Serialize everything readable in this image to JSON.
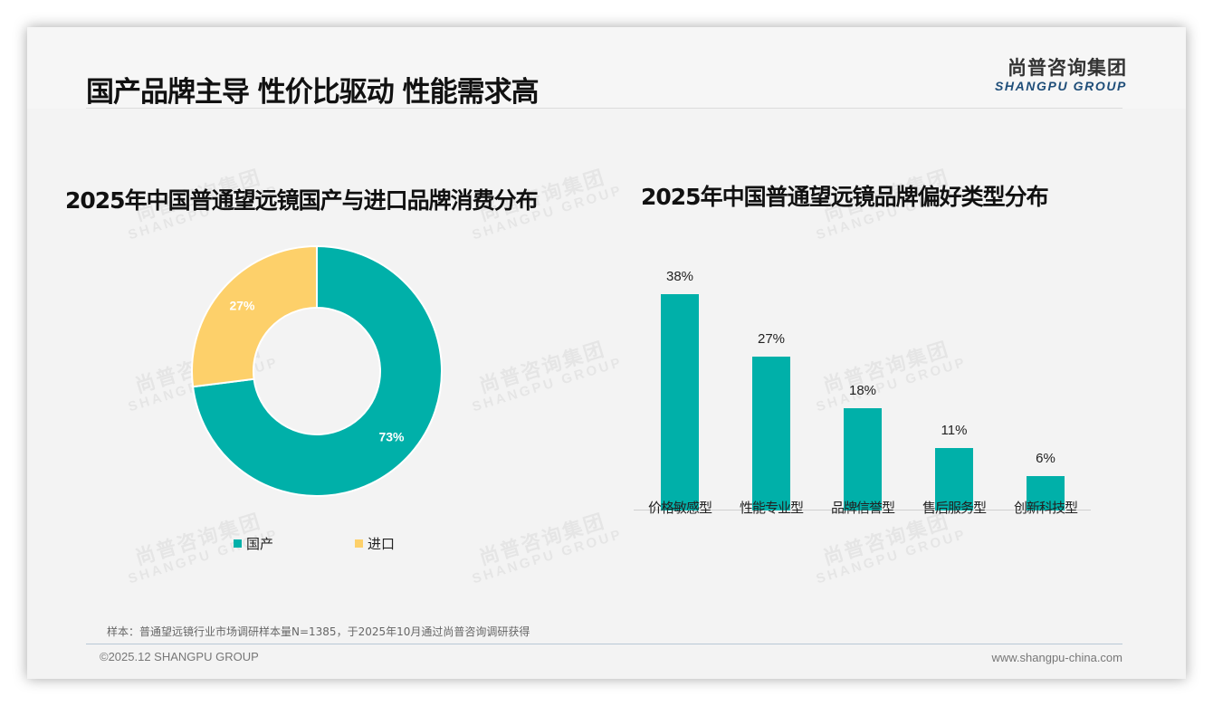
{
  "header": {
    "title": "国产品牌主导 性价比驱动 性能需求高",
    "logo_cn": "尚普咨询集团",
    "logo_en": "SHANGPU GROUP"
  },
  "colors": {
    "teal": "#00b0a9",
    "yellow": "#fdd06a",
    "background": "#f3f3f3",
    "logo_blue": "#1f4e79"
  },
  "watermark": {
    "cn": "尚普咨询集团",
    "en": "SHANGPU GROUP"
  },
  "chart_data": [
    {
      "type": "pie",
      "variant": "donut",
      "title": "2025年中国普通望远镜国产与进口品牌消费分布",
      "categories": [
        "国产",
        "进口"
      ],
      "values": [
        73,
        27
      ],
      "labels": [
        "73%",
        "27%"
      ],
      "colors": [
        "#00b0a9",
        "#fdd06a"
      ],
      "legend_position": "bottom"
    },
    {
      "type": "bar",
      "title": "2025年中国普通望远镜品牌偏好类型分布",
      "categories": [
        "价格敏感型",
        "性能专业型",
        "品牌信誉型",
        "售后服务型",
        "创新科技型"
      ],
      "values": [
        38,
        27,
        18,
        11,
        6
      ],
      "labels": [
        "38%",
        "27%",
        "18%",
        "11%",
        "6%"
      ],
      "color": "#00b0a9",
      "xlabel": "",
      "ylabel": "",
      "grid": false,
      "ylim": [
        0,
        40
      ]
    }
  ],
  "legend": {
    "items": [
      {
        "label": "国产",
        "color": "#00b0a9"
      },
      {
        "label": "进口",
        "color": "#fdd06a"
      }
    ]
  },
  "footer": {
    "note": "样本：普通望远镜行业市场调研样本量N=1385，于2025年10月通过尚普咨询调研获得",
    "copyright": "©2025.12 SHANGPU GROUP",
    "website": "www.shangpu-china.com"
  }
}
